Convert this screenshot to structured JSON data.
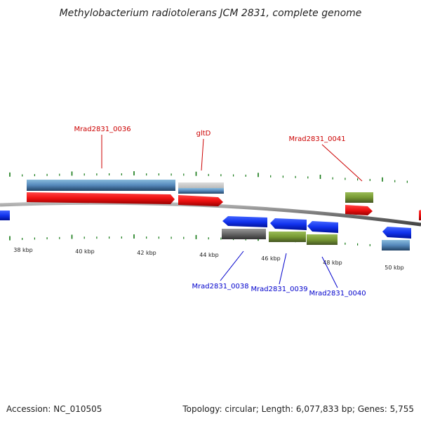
{
  "title": "Methylobacterium radiotolerans JCM 2831, complete genome",
  "footer": {
    "accession": "Accession: NC_010505",
    "topology": "Topology: circular; Length: 6,077,833 bp; Genes: 5,755"
  },
  "colors": {
    "red": "#ee1111",
    "blue": "#1133ee",
    "steel": "#5588bb",
    "olive": "#779933",
    "grey": "#666666",
    "lightgrey": "#bbbbbb",
    "tick": "#117711",
    "label_red": "#cc0000",
    "label_blue": "#0000cc"
  },
  "scale_labels": [
    {
      "kbp": 38,
      "text": "38 kbp"
    },
    {
      "kbp": 40,
      "text": "40 kbp"
    },
    {
      "kbp": 42,
      "text": "42 kbp"
    },
    {
      "kbp": 44,
      "text": "44 kbp"
    },
    {
      "kbp": 46,
      "text": "46 kbp"
    },
    {
      "kbp": 48,
      "text": "48 kbp"
    },
    {
      "kbp": 50,
      "text": "50 kbp"
    }
  ],
  "gene_labels": [
    {
      "name": "Mrad2831_0036",
      "strand": "forward"
    },
    {
      "name": "gltD",
      "strand": "forward"
    },
    {
      "name": "Mrad2831_0041",
      "strand": "forward"
    },
    {
      "name": "Mrad2831_0038",
      "strand": "reverse"
    },
    {
      "name": "Mrad2831_0039",
      "strand": "reverse"
    },
    {
      "name": "Mrad2831_0040",
      "strand": "reverse"
    }
  ]
}
